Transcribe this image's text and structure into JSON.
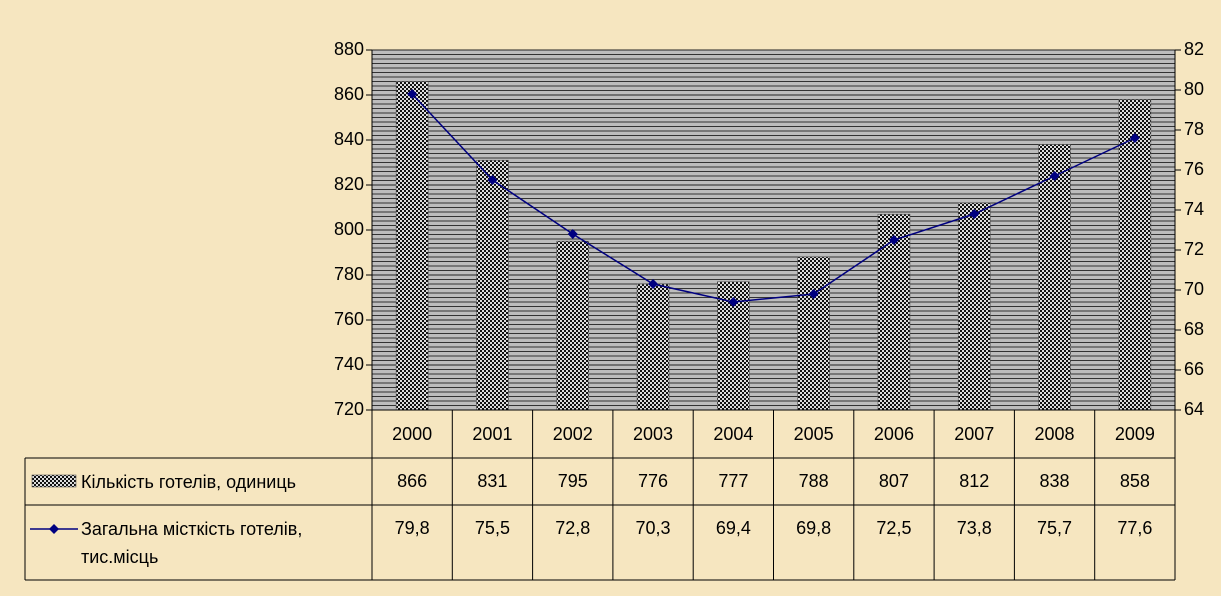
{
  "chart_data": {
    "type": "combo",
    "categories": [
      "2000",
      "2001",
      "2002",
      "2003",
      "2004",
      "2005",
      "2006",
      "2007",
      "2008",
      "2009"
    ],
    "series": [
      {
        "name": "Кількість готелів, одиниць",
        "type": "bar",
        "color": "#000000",
        "values": [
          866,
          831,
          795,
          776,
          777,
          788,
          807,
          812,
          838,
          858
        ]
      },
      {
        "name": "Загальна місткість готелів, тис.місць",
        "type": "line",
        "axis": "y2",
        "color": "#000080",
        "values": [
          79.8,
          75.5,
          72.8,
          70.3,
          69.4,
          69.8,
          72.5,
          73.8,
          75.7,
          77.6
        ],
        "value_labels": [
          "79,8",
          "75,5",
          "72,8",
          "70,3",
          "69,4",
          "69,8",
          "72,5",
          "73,8",
          "75,7",
          "77,6"
        ]
      }
    ],
    "ylim": [
      720,
      880
    ],
    "yticks": [
      720,
      740,
      760,
      780,
      800,
      820,
      840,
      860,
      880
    ],
    "y2lim": [
      64,
      82
    ],
    "y2ticks": [
      64,
      66,
      68,
      70,
      72,
      74,
      76,
      78,
      80,
      82
    ],
    "grid": true
  }
}
